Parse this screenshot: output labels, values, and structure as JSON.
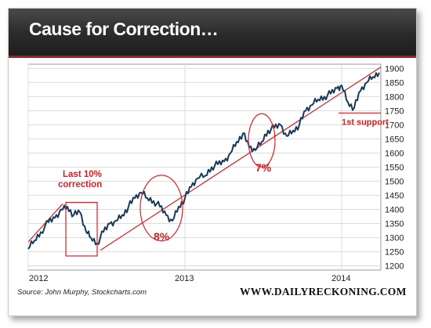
{
  "header": {
    "title": "Cause for Correction…"
  },
  "source": "Source: John Murphy, Stockcharts.com",
  "brand": "WWW.DAILYRECKONING.COM",
  "colors": {
    "line": "#173a5c",
    "accent": "#d62027",
    "grid": "#dcdcdc"
  },
  "chart_data": {
    "type": "line",
    "title": "Cause for Correction…",
    "xlabel": "",
    "ylabel": "",
    "x_ticks": [
      "2012",
      "2013",
      "2014"
    ],
    "y_ticks": [
      1200,
      1250,
      1300,
      1350,
      1400,
      1450,
      1500,
      1550,
      1600,
      1650,
      1700,
      1750,
      1800,
      1850,
      1900
    ],
    "ylim": [
      1185,
      1915
    ],
    "xlim": [
      2012.0,
      2014.25
    ],
    "grid": true,
    "series": [
      {
        "x": [
          2012.0,
          2012.04,
          2012.08,
          2012.13,
          2012.17,
          2012.21,
          2012.25,
          2012.29,
          2012.33,
          2012.37,
          2012.4,
          2012.44,
          2012.48,
          2012.52,
          2012.56,
          2012.6,
          2012.64,
          2012.68,
          2012.72,
          2012.76,
          2012.8,
          2012.84,
          2012.88,
          2012.92,
          2012.96,
          2013.0,
          2013.04,
          2013.08,
          2013.13,
          2013.17,
          2013.21,
          2013.25,
          2013.29,
          2013.33,
          2013.37,
          2013.41,
          2013.45,
          2013.49,
          2013.53,
          2013.57,
          2013.61,
          2013.65,
          2013.69,
          2013.73,
          2013.77,
          2013.81,
          2013.85,
          2013.89,
          2013.93,
          2013.97,
          2014.0,
          2014.04,
          2014.08,
          2014.12,
          2014.16,
          2014.2,
          2014.24
        ],
        "values": [
          1260,
          1290,
          1320,
          1355,
          1370,
          1400,
          1410,
          1380,
          1390,
          1320,
          1300,
          1280,
          1320,
          1350,
          1360,
          1380,
          1410,
          1440,
          1460,
          1440,
          1430,
          1410,
          1380,
          1360,
          1410,
          1440,
          1480,
          1510,
          1520,
          1550,
          1560,
          1570,
          1600,
          1640,
          1670,
          1620,
          1610,
          1640,
          1680,
          1690,
          1700,
          1660,
          1680,
          1700,
          1750,
          1770,
          1790,
          1800,
          1810,
          1830,
          1840,
          1780,
          1760,
          1820,
          1850,
          1870,
          1885
        ]
      }
    ],
    "annotations": [
      {
        "text": "Last 10%\ncorrection",
        "type": "box"
      },
      {
        "text": "8%",
        "type": "circle"
      },
      {
        "text": "7%",
        "type": "circle"
      },
      {
        "text": "1st support",
        "type": "line"
      }
    ]
  }
}
